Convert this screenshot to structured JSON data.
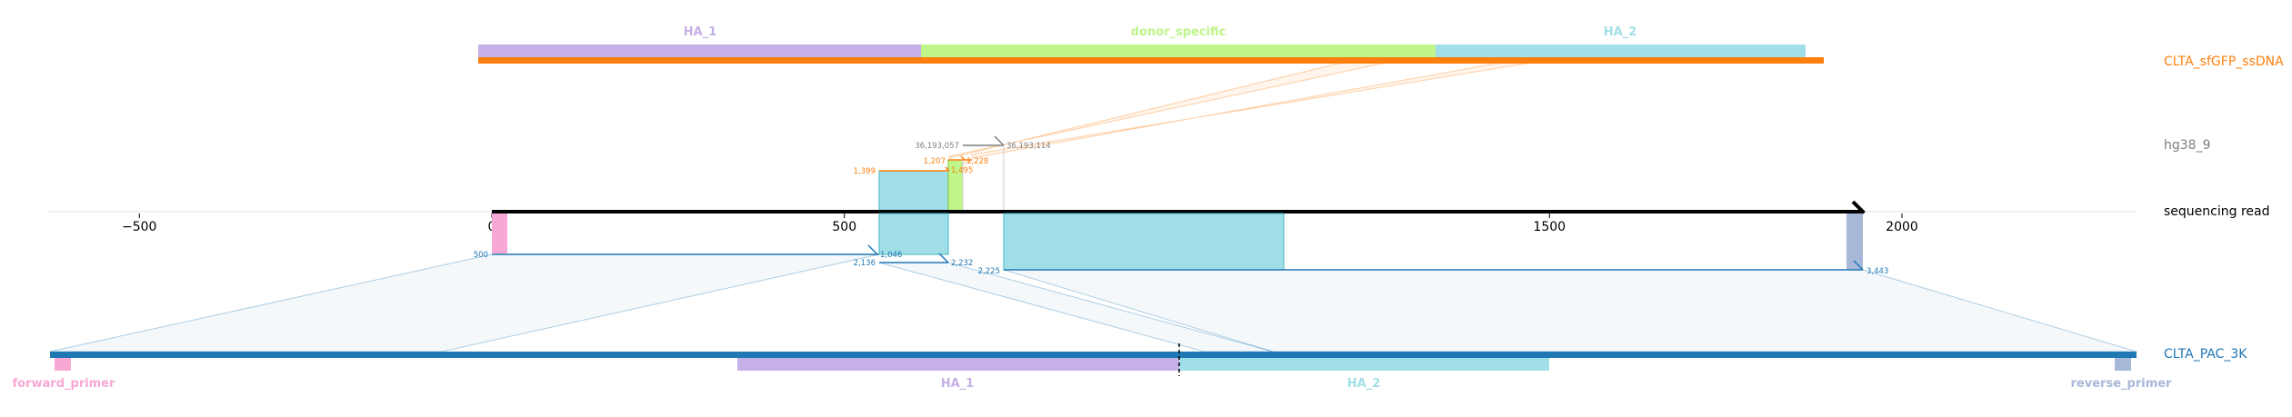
{
  "tracks": {
    "donor": {
      "name": "CLTA_sfGFP_ssDNA",
      "color": "#ff7f0e"
    },
    "genome": {
      "name": "hg38_9",
      "color": "#7f7f7f"
    },
    "read": {
      "name": "sequencing read",
      "color": "#000000"
    },
    "amplicon": {
      "name": "CLTA_PAC_3K",
      "color": "#1f77b4"
    }
  },
  "donor_features": [
    {
      "name": "HA_1",
      "color": "#c5b0e8"
    },
    {
      "name": "donor_specific",
      "color": "#bff58a"
    },
    {
      "name": "HA_2",
      "color": "#a1dfe8"
    }
  ],
  "amplicon_features": [
    {
      "name": "forward_primer",
      "color": "#f7a8d4"
    },
    {
      "name": "HA_1",
      "color": "#c5b0e8"
    },
    {
      "name": "HA_2",
      "color": "#a1dfe8"
    },
    {
      "name": "reverse_primer",
      "color": "#a8b8d8"
    }
  ],
  "read_axis": {
    "ticks": [
      -500,
      0,
      500,
      1000,
      1500,
      2000
    ],
    "tick_labels": [
      "−500",
      "0",
      "500",
      "1000",
      "1500",
      "2000"
    ],
    "read_length": 1945
  },
  "alignments": {
    "genome": [
      {
        "read_start": 550,
        "read_end": 647,
        "ref_start_label": "1,399",
        "ref_end_label": "1,495",
        "color": "#ff7f0e"
      },
      {
        "read_start": 647,
        "read_end": 668,
        "ref_start_label": "1,207",
        "ref_end_label": "1,228",
        "color": "#ff7f0e"
      },
      {
        "read_start": 727,
        "read_end": 727,
        "ref_start_label": "36,193,057",
        "ref_end_label": "36,193,114",
        "color": "#7f7f7f"
      }
    ],
    "amplicon": [
      {
        "read_start": 0,
        "read_end": 550,
        "ref_start_label": "500",
        "ref_end_label": "1,046",
        "color": "#1f77b4"
      },
      {
        "read_start": 550,
        "read_end": 647,
        "ref_start_label": "2,136",
        "ref_end_label": "2,232",
        "color": "#1f77b4"
      },
      {
        "read_start": 727,
        "read_end": 1945,
        "ref_start_label": "2,225",
        "ref_end_label": "3,443",
        "color": "#1f77b4"
      }
    ]
  }
}
